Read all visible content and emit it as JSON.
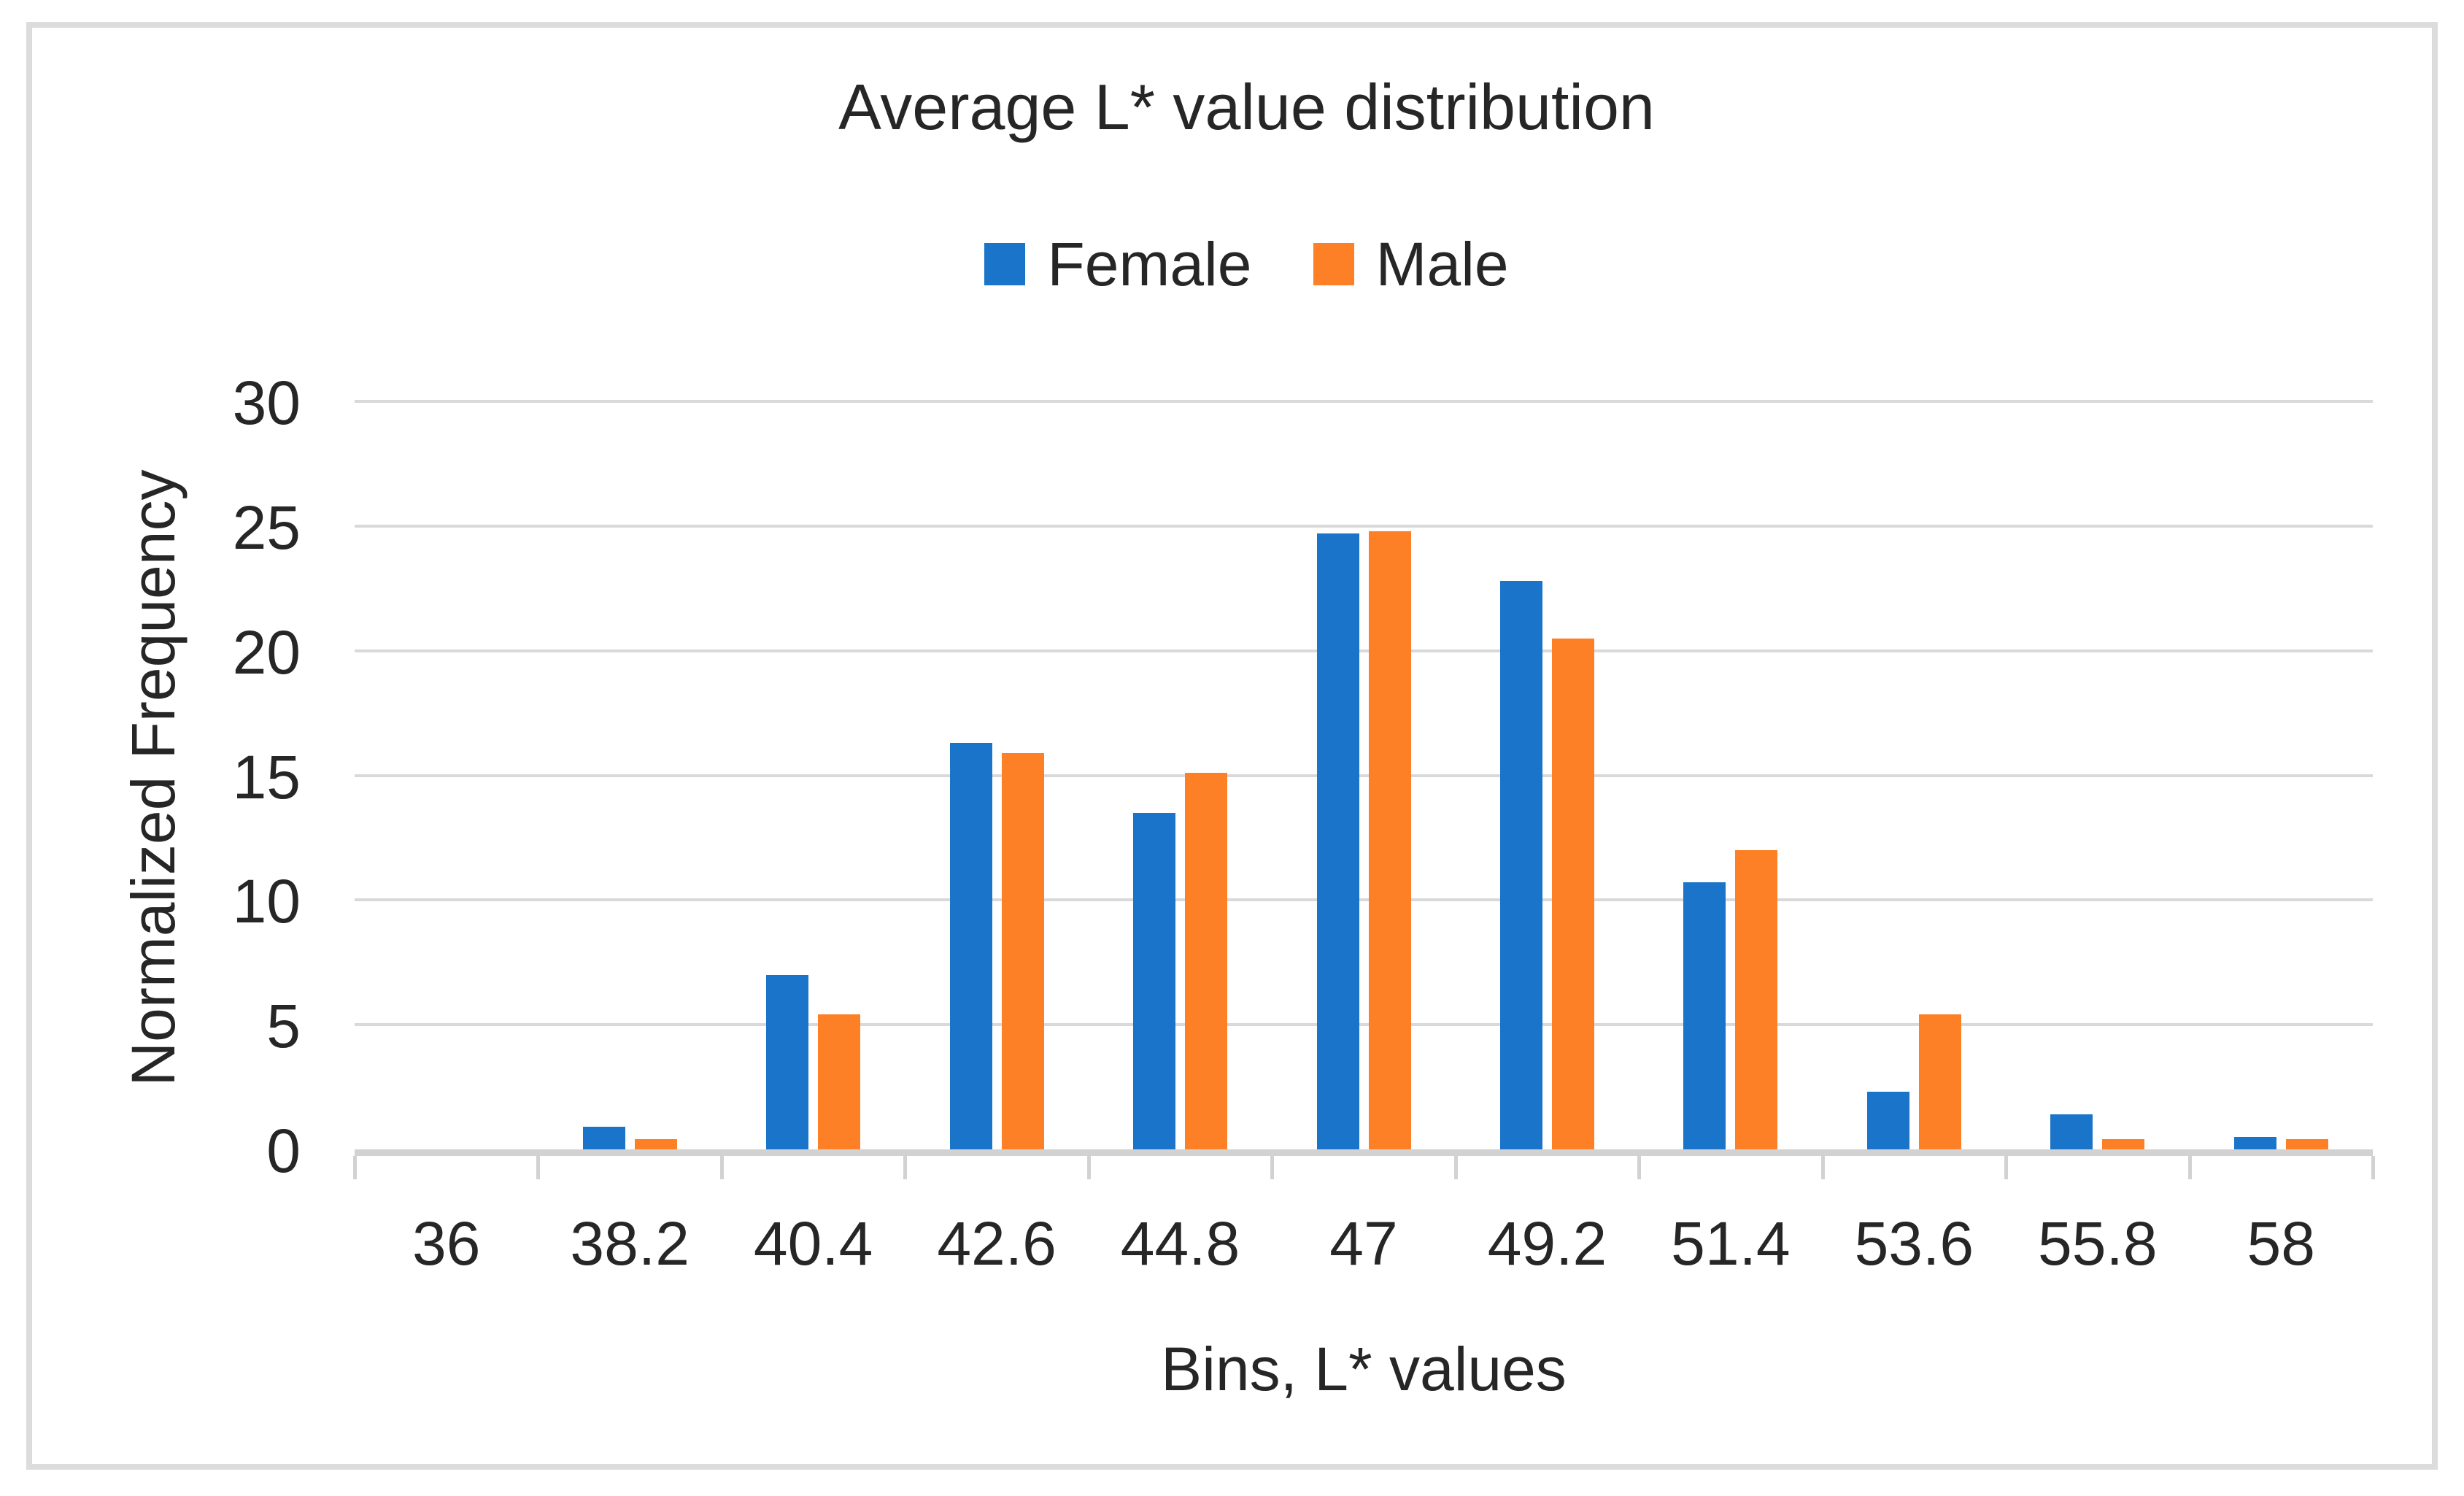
{
  "figure": {
    "background": "#FFFFFF",
    "frame_border_color": "#DCDCDC",
    "text_color": "#262626"
  },
  "chart_data": {
    "type": "bar",
    "title": "Average L* value distribution",
    "xlabel": "Bins, L* values",
    "ylabel": "Normalized Frequency",
    "categories": [
      "36",
      "38.2",
      "40.4",
      "42.6",
      "44.8",
      "47",
      "49.2",
      "51.4",
      "53.6",
      "55.8",
      "58"
    ],
    "series": [
      {
        "name": "Female",
        "color": "#1A74C9",
        "values": [
          0,
          0.9,
          7.0,
          16.3,
          13.5,
          24.7,
          22.8,
          10.7,
          2.3,
          1.4,
          0.5
        ]
      },
      {
        "name": "Male",
        "color": "#FD8027",
        "values": [
          0,
          0.4,
          5.4,
          15.9,
          15.1,
          24.8,
          20.5,
          12.0,
          5.4,
          0.4,
          0.4
        ]
      }
    ],
    "ylim": [
      0,
      30
    ],
    "yticks": [
      0,
      5,
      10,
      15,
      20,
      25,
      30
    ],
    "grid": true,
    "gridline_color": "#D9D9D9",
    "axis_line_color": "#D2D2D2",
    "legend_position": "top-center"
  },
  "legend": {
    "items": [
      {
        "label": "Female",
        "color": "#1A74C9"
      },
      {
        "label": "Male",
        "color": "#FD8027"
      }
    ]
  }
}
